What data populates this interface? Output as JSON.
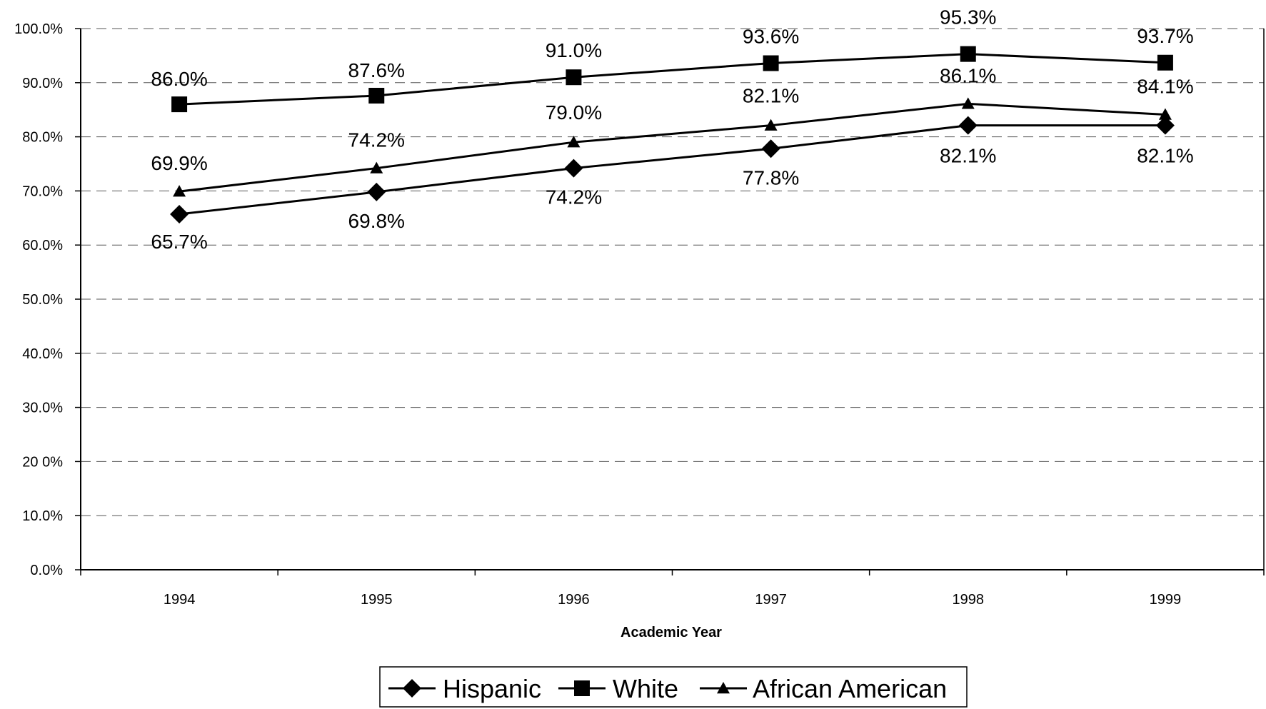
{
  "chart_data": {
    "type": "line",
    "title": "",
    "xlabel": "Academic Year",
    "ylabel": "",
    "categories": [
      "1994",
      "1995",
      "1996",
      "1997",
      "1998",
      "1999"
    ],
    "ylim": [
      0,
      100
    ],
    "yticks": [
      "0.0%",
      "10.0%",
      "20 0%",
      "30.0%",
      "40.0%",
      "50.0%",
      "60.0%",
      "70.0%",
      "80.0%",
      "90.0%",
      "100.0%"
    ],
    "grid": "horizontal-dashed",
    "legend_position": "bottom-center",
    "series": [
      {
        "name": "Hispanic",
        "marker": "diamond",
        "color": "#000000",
        "values": [
          65.7,
          69.8,
          74.2,
          77.8,
          82.1,
          82.1
        ],
        "labels": [
          "65.7%",
          "69.8%",
          "74.2%",
          "77.8%",
          "82.1%",
          "82.1%"
        ]
      },
      {
        "name": "White",
        "marker": "square",
        "color": "#000000",
        "values": [
          86.0,
          87.6,
          91.0,
          93.6,
          95.3,
          93.7
        ],
        "labels": [
          "86.0%",
          "87.6%",
          "91.0%",
          "93.6%",
          "95.3%",
          "93.7%"
        ]
      },
      {
        "name": "African American",
        "marker": "triangle",
        "color": "#000000",
        "values": [
          69.9,
          74.2,
          79.0,
          82.1,
          86.1,
          84.1
        ],
        "labels": [
          "69.9%",
          "74.2%",
          "79.0%",
          "82.1%",
          "86.1%",
          "84.1%"
        ]
      }
    ]
  }
}
